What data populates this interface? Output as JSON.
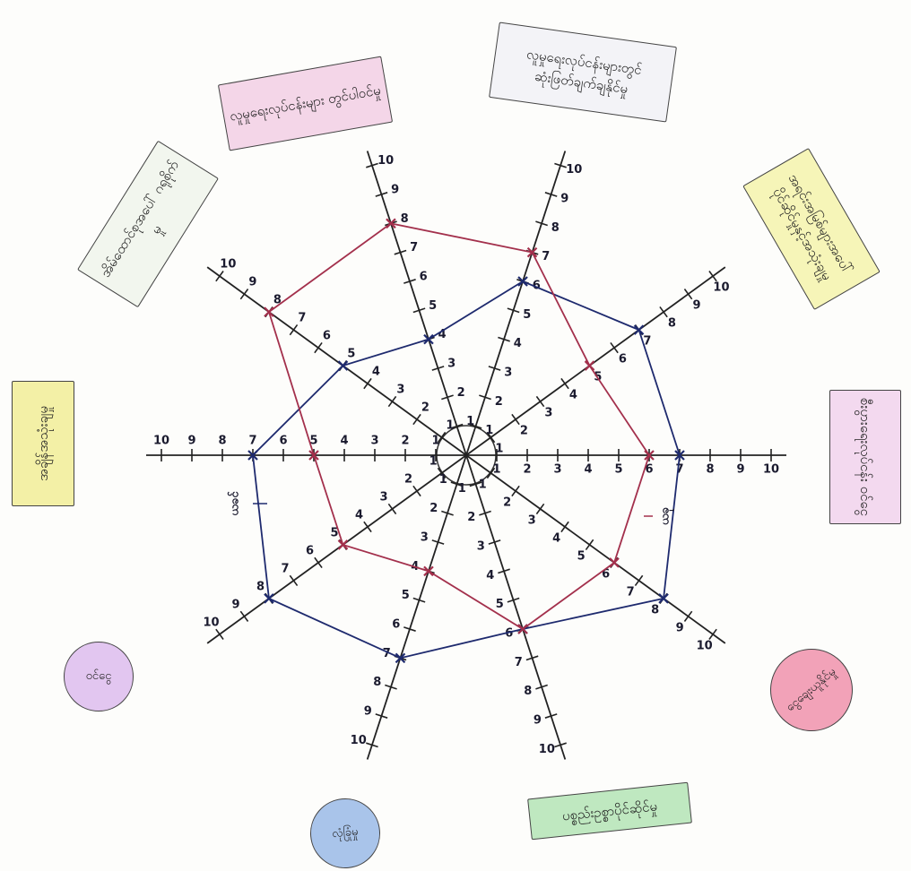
{
  "chart_data": {
    "type": "radar",
    "categories": [
      "စီးပွားရေးလုပ်ငန်း ဝင်ငွေ",
      "အရင်းအမြစ်များအပေါ် ပိုင်ဆိုင်မှုနှင့်အသုံးချမှု",
      "လူမှုရေးလုပ်ငန်းများတွင် ဆုံးဖြတ်ချက်ချနိုင်မှု",
      "လူမှုရေးလုပ်ငန်းများ တွင်ပါဝင်မှု",
      "အိမ်ထောင်စုအပေါ် ဂရုစိုက်မှု",
      "အချိန်အသုံးချမှု",
      "ဝင်ငွေ",
      "လုံခြုံမှု",
      "ပစ္စည်းဥစ္စာပိုင်ဆိုင်မှု",
      "ငွေချေးယူနိုင်မှု"
    ],
    "series": [
      {
        "name": "ယခင်",
        "color": "#1e2a6e",
        "values": [
          7,
          7,
          6,
          4,
          5,
          7,
          8,
          7,
          6,
          8
        ]
      },
      {
        "name": "ယခု",
        "color": "#a3304c",
        "values": [
          6,
          5,
          7,
          8,
          8,
          5,
          5,
          4,
          6,
          6
        ]
      }
    ],
    "rlim": [
      0,
      10
    ],
    "rticks": [
      1,
      2,
      3,
      4,
      5,
      6,
      7,
      8,
      9,
      10
    ]
  }
}
